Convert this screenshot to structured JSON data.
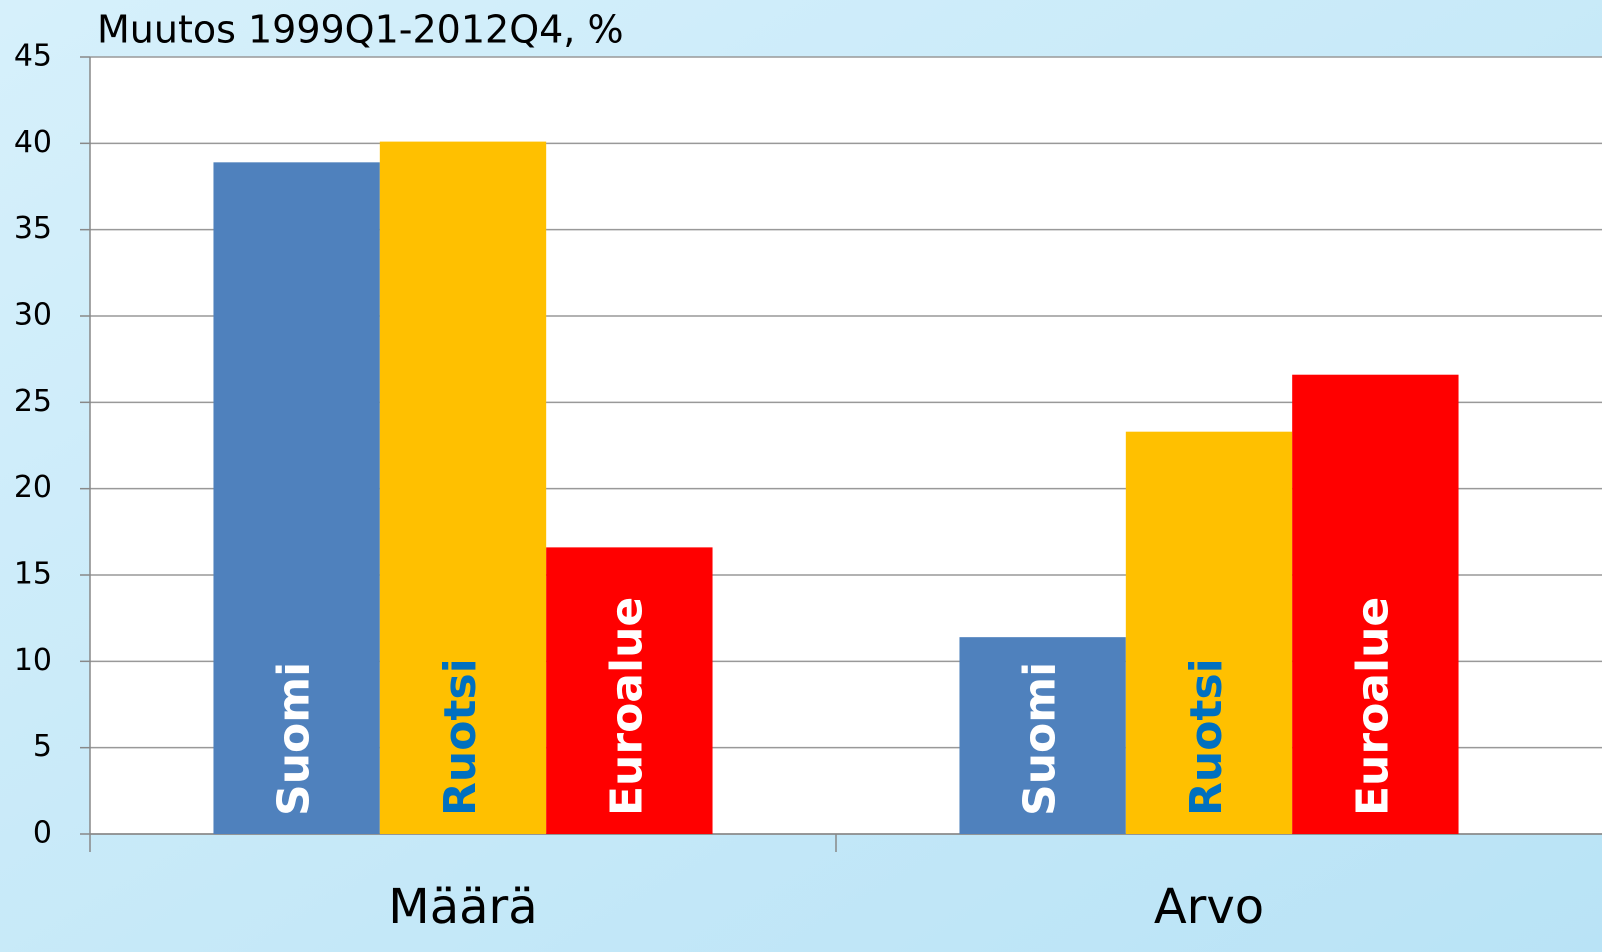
{
  "chart_data": {
    "type": "bar",
    "title": "Muutos 1999Q1-2012Q4, %",
    "categories": [
      "Määrä",
      "Arvo"
    ],
    "series": [
      {
        "name": "Suomi",
        "color": "#4f81bd",
        "label_color": "#ffffff",
        "values": [
          38.9,
          11.4
        ]
      },
      {
        "name": "Ruotsi",
        "color": "#ffc000",
        "label_color": "#0070c0",
        "values": [
          40.1,
          23.3
        ]
      },
      {
        "name": "Euroalue",
        "color": "#ff0000",
        "label_color": "#ffffff",
        "values": [
          16.6,
          26.6
        ]
      }
    ],
    "ylim": [
      0,
      45
    ],
    "yticks": [
      0,
      5,
      10,
      15,
      20,
      25,
      30,
      35,
      40,
      45
    ],
    "grid": true
  }
}
